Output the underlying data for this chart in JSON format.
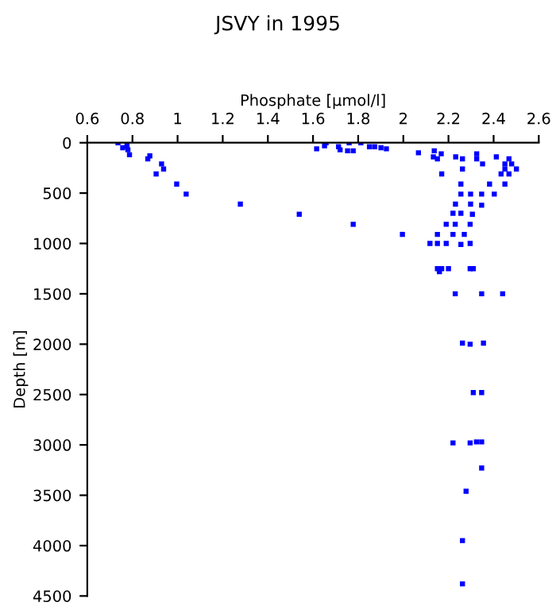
{
  "chart_data": {
    "type": "scatter",
    "title": "JSVY in 1995",
    "xlabel": "Phosphate [μmol/l]",
    "ylabel": "Depth [m]",
    "xlim": [
      0.6,
      2.6
    ],
    "xticks": [
      0.6,
      0.8,
      1,
      1.2,
      1.4,
      1.6,
      1.8,
      2,
      2.2,
      2.4,
      2.6
    ],
    "ylim": [
      4500,
      0
    ],
    "yticks": [
      0,
      500,
      1000,
      1500,
      2000,
      2500,
      3000,
      3500,
      4000,
      4500
    ],
    "grid": false,
    "legend": false,
    "marker": "square",
    "series": [
      {
        "color": "#0000ff",
        "x": [
          0.736,
          0.757,
          0.776,
          0.78,
          0.787,
          0.868,
          0.877,
          0.929,
          0.938,
          0.905,
          0.996,
          1.038,
          1.278,
          1.539,
          1.616,
          1.651,
          1.658,
          1.713,
          1.72,
          1.753,
          1.76,
          1.778,
          1.812,
          1.85,
          1.873,
          1.901,
          1.925,
          1.778,
          1.996,
          2.067,
          2.137,
          2.133,
          2.151,
          2.168,
          2.232,
          2.262,
          2.262,
          2.17,
          2.325,
          2.325,
          2.351,
          2.412,
          2.468,
          2.45,
          2.48,
          2.501,
          2.45,
          2.433,
          2.468,
          2.255,
          2.298,
          2.255,
          2.347,
          2.382,
          2.45,
          2.403,
          2.231,
          2.298,
          2.347,
          2.22,
          2.255,
          2.306,
          2.19,
          2.23,
          2.296,
          2.151,
          2.22,
          2.27,
          2.118,
          2.151,
          2.19,
          2.255,
          2.296,
          2.151,
          2.16,
          2.17,
          2.2,
          2.296,
          2.31,
          2.23,
          2.347,
          2.44,
          2.262,
          2.296,
          2.355,
          2.31,
          2.347,
          2.22,
          2.296,
          2.324,
          2.347,
          2.347,
          2.278,
          2.262,
          2.262
        ],
        "values": [
          0,
          50,
          30,
          70,
          120,
          160,
          130,
          210,
          260,
          310,
          410,
          510,
          610,
          710,
          60,
          30,
          0,
          40,
          70,
          80,
          0,
          80,
          0,
          40,
          40,
          50,
          60,
          810,
          910,
          100,
          80,
          140,
          160,
          110,
          140,
          160,
          260,
          310,
          110,
          160,
          210,
          140,
          160,
          210,
          210,
          260,
          260,
          310,
          310,
          410,
          510,
          510,
          510,
          410,
          410,
          510,
          610,
          610,
          620,
          700,
          700,
          710,
          810,
          810,
          810,
          910,
          910,
          910,
          1000,
          1000,
          1000,
          1010,
          1000,
          1250,
          1280,
          1250,
          1250,
          1250,
          1250,
          1500,
          1500,
          1500,
          1990,
          2000,
          1990,
          2480,
          2480,
          2980,
          2980,
          2970,
          2970,
          3230,
          3460,
          3950,
          4380
        ]
      }
    ]
  }
}
